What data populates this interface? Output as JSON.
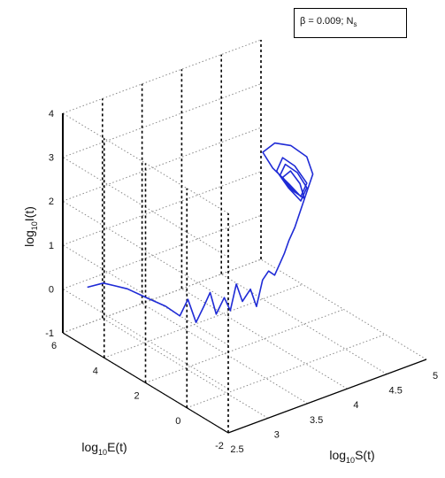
{
  "chart_data": {
    "type": "line",
    "view": "3d",
    "legend": {
      "text": "β = 0.009; N",
      "subscript": "s",
      "placement": "top-right"
    },
    "axes": {
      "x": {
        "label_base": "log",
        "label_sub": "10",
        "label_var": "S(t)",
        "ticks": [
          "2.5",
          "3",
          "3.5",
          "4",
          "4.5",
          "5"
        ],
        "range": [
          2.5,
          5
        ]
      },
      "y": {
        "label_base": "log",
        "label_sub": "10",
        "label_var": "E(t)",
        "ticks": [
          "-2",
          "0",
          "2",
          "4",
          "6"
        ],
        "range": [
          -2,
          6
        ]
      },
      "z": {
        "label_base": "log",
        "label_sub": "10",
        "label_var": "I(t)",
        "ticks": [
          "-1",
          "0",
          "1",
          "2",
          "3",
          "4"
        ],
        "range": [
          -1,
          4
        ]
      }
    },
    "grid": true,
    "series": [
      {
        "color": "#1f2bd6",
        "points": [
          [
            2.6,
            5.2,
            0.2
          ],
          [
            2.75,
            5.0,
            0.25
          ],
          [
            2.95,
            4.6,
            0.1
          ],
          [
            3.1,
            4.2,
            -0.1
          ],
          [
            3.25,
            3.9,
            -0.3
          ],
          [
            3.35,
            3.6,
            -0.5
          ],
          [
            3.4,
            3.4,
            -0.1
          ],
          [
            3.45,
            3.2,
            -0.6
          ],
          [
            3.5,
            3.0,
            -0.2
          ],
          [
            3.55,
            2.9,
            0.1
          ],
          [
            3.6,
            2.8,
            -0.4
          ],
          [
            3.65,
            2.6,
            0.0
          ],
          [
            3.7,
            2.5,
            -0.3
          ],
          [
            3.75,
            2.4,
            0.3
          ],
          [
            3.8,
            2.3,
            -0.1
          ],
          [
            3.85,
            2.1,
            0.2
          ],
          [
            3.9,
            2.0,
            -0.2
          ],
          [
            3.95,
            1.9,
            0.4
          ],
          [
            4.0,
            1.8,
            0.6
          ],
          [
            4.05,
            1.7,
            0.5
          ],
          [
            4.1,
            1.6,
            0.8
          ],
          [
            4.12,
            1.5,
            1.0
          ],
          [
            4.15,
            1.4,
            1.3
          ],
          [
            4.2,
            1.3,
            1.6
          ],
          [
            4.25,
            1.2,
            2.0
          ],
          [
            4.3,
            1.1,
            2.4
          ],
          [
            4.35,
            1.0,
            2.8
          ],
          [
            4.3,
            1.1,
            3.2
          ],
          [
            4.15,
            1.3,
            3.5
          ],
          [
            4.0,
            1.5,
            3.6
          ],
          [
            3.9,
            1.7,
            3.4
          ],
          [
            4.0,
            1.6,
            3.0
          ],
          [
            4.15,
            1.4,
            2.6
          ],
          [
            4.25,
            1.2,
            2.3
          ],
          [
            4.3,
            1.1,
            2.6
          ],
          [
            4.2,
            1.3,
            3.0
          ],
          [
            4.1,
            1.5,
            3.2
          ],
          [
            4.05,
            1.6,
            2.9
          ],
          [
            4.15,
            1.4,
            2.5
          ],
          [
            4.25,
            1.2,
            2.2
          ],
          [
            4.3,
            1.1,
            2.5
          ],
          [
            4.22,
            1.25,
            2.85
          ],
          [
            4.12,
            1.45,
            3.05
          ],
          [
            4.08,
            1.55,
            2.8
          ],
          [
            4.18,
            1.35,
            2.45
          ],
          [
            4.28,
            1.15,
            2.25
          ],
          [
            4.24,
            1.2,
            2.6
          ],
          [
            4.16,
            1.35,
            2.9
          ],
          [
            4.1,
            1.5,
            2.75
          ],
          [
            4.2,
            1.3,
            2.4
          ]
        ]
      }
    ]
  }
}
